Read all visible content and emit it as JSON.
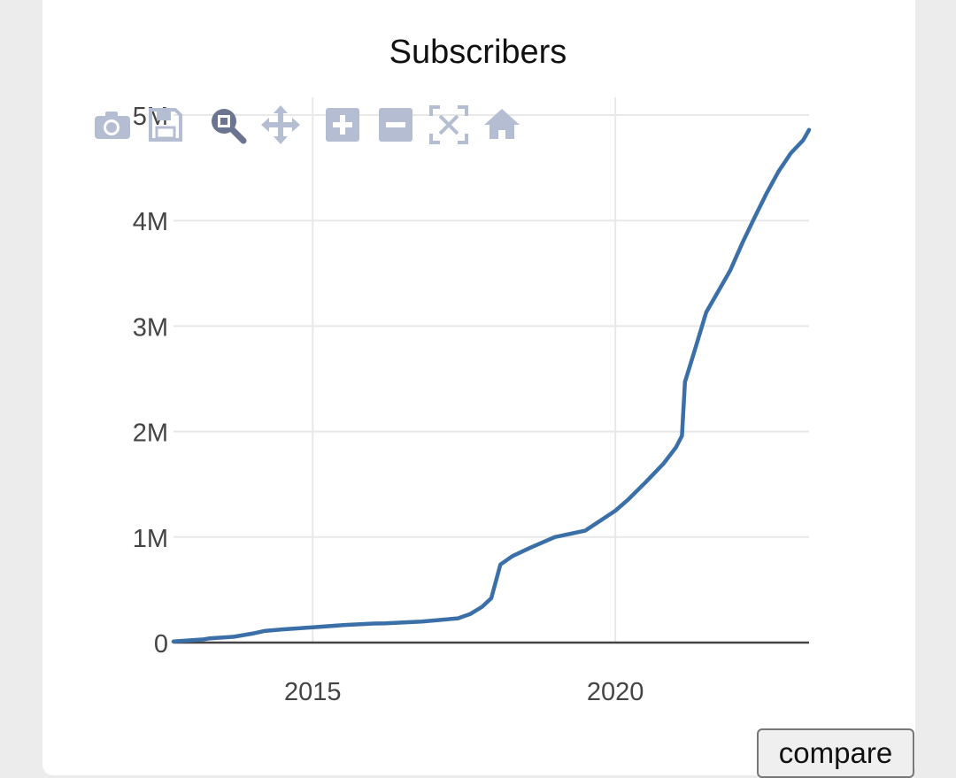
{
  "chart_data": {
    "type": "line",
    "title": "Subscribers",
    "xlabel": "",
    "ylabel": "",
    "xlim": [
      2012.7,
      2023.2
    ],
    "ylim": [
      0,
      5000000
    ],
    "x_ticks": [
      2015,
      2020
    ],
    "x_tick_labels": [
      "2015",
      "2020"
    ],
    "y_ticks": [
      0,
      1000000,
      2000000,
      3000000,
      4000000,
      5000000
    ],
    "y_tick_labels": [
      "0",
      "1M",
      "2M",
      "3M",
      "4M",
      "5M"
    ],
    "grid": true,
    "line_color": "#3a6fa8",
    "series": [
      {
        "x": [
          2012.7,
          2013.2,
          2013.3,
          2013.7,
          2014.0,
          2014.2,
          2014.5,
          2015.0,
          2015.5,
          2016.0,
          2016.2,
          2016.8,
          2017.4,
          2017.6,
          2017.8,
          2017.95,
          2018.1,
          2018.3,
          2018.6,
          2019.0,
          2019.5,
          2020.0,
          2020.2,
          2020.5,
          2020.8,
          2021.0,
          2021.1,
          2021.15,
          2021.3,
          2021.5,
          2021.9,
          2022.1,
          2022.3,
          2022.5,
          2022.7,
          2022.9,
          2023.1,
          2023.2
        ],
        "y": [
          10000,
          30000,
          40000,
          55000,
          85000,
          110000,
          125000,
          145000,
          165000,
          180000,
          182000,
          200000,
          230000,
          270000,
          340000,
          420000,
          740000,
          820000,
          900000,
          1000000,
          1060000,
          1250000,
          1350000,
          1520000,
          1700000,
          1850000,
          1960000,
          2470000,
          2750000,
          3130000,
          3530000,
          3790000,
          4030000,
          4260000,
          4470000,
          4640000,
          4760000,
          4860000
        ]
      }
    ]
  },
  "modebar": {
    "icons": [
      "camera-icon",
      "save-icon",
      "zoom-icon",
      "pan-icon",
      "zoom-in-icon",
      "zoom-out-icon",
      "autoscale-icon",
      "reset-axes-icon"
    ]
  },
  "compare_button": {
    "label": "compare"
  }
}
